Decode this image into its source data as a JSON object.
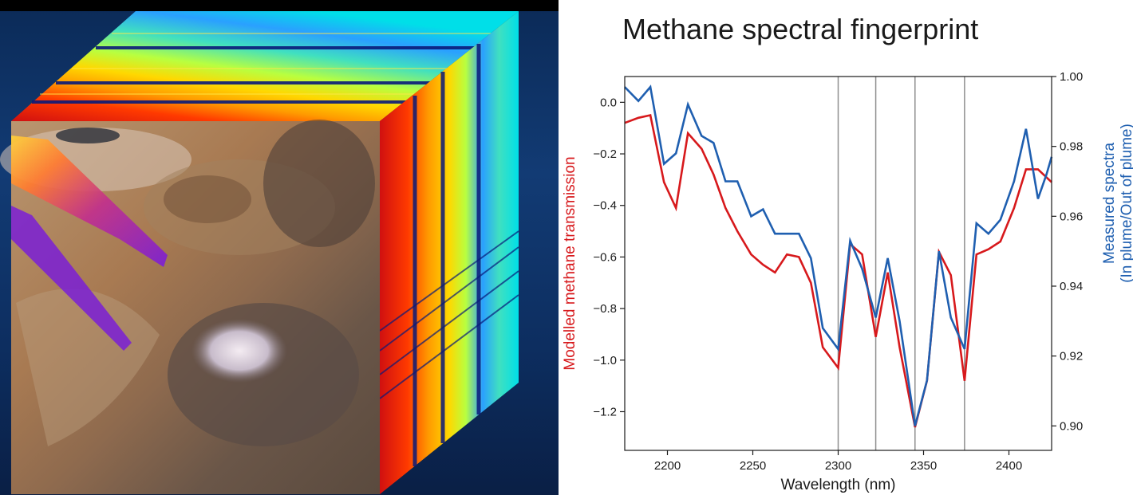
{
  "colors": {
    "series_model": "#d7191c",
    "series_measured": "#1f5fb0",
    "marker_lines": "#8f8f8f",
    "axis": "#1a1a1a",
    "ylabel_left": "#d7191c",
    "ylabel_right": "#1f5fb0"
  },
  "hypercube": {
    "layers": [
      {
        "name": "methane-plume-overlay",
        "color": "#7a1fd6"
      },
      {
        "name": "spectral-top-face",
        "palette": "jet"
      },
      {
        "name": "spectral-side-face",
        "palette": "jet"
      }
    ]
  },
  "chart_data": {
    "type": "line",
    "title": "Methane spectral fingerprint",
    "xlabel": "Wavelength (nm)",
    "ylabel": "Modelled methane transmission",
    "ylabel2_lines": [
      "Measured spectra",
      "(In plume/Out of plume)"
    ],
    "xlim": [
      2175,
      2425
    ],
    "ylim": [
      -1.35,
      0.1
    ],
    "ylim2": [
      0.893,
      1.0
    ],
    "xticks": [
      2200,
      2250,
      2300,
      2350,
      2400
    ],
    "yticks": [
      -1.2,
      -1.0,
      -0.8,
      -0.6,
      -0.4,
      -0.2,
      0.0
    ],
    "yticks2": [
      0.9,
      0.92,
      0.94,
      0.96,
      0.98,
      1.0
    ],
    "vlines": [
      2300,
      2322,
      2345,
      2374
    ],
    "series": [
      {
        "axis": "left",
        "x": [
          2175,
          2183,
          2190,
          2198,
          2205,
          2212,
          2220,
          2227,
          2234,
          2241,
          2249,
          2256,
          2263,
          2270,
          2277,
          2284,
          2291,
          2300,
          2307,
          2314,
          2322,
          2329,
          2336,
          2345,
          2352,
          2359,
          2366,
          2374,
          2381,
          2388,
          2395,
          2403,
          2410,
          2417,
          2425
        ],
        "values": [
          -0.08,
          -0.06,
          -0.05,
          -0.31,
          -0.41,
          -0.12,
          -0.18,
          -0.28,
          -0.41,
          -0.5,
          -0.59,
          -0.63,
          -0.66,
          -0.59,
          -0.6,
          -0.7,
          -0.95,
          -1.03,
          -0.55,
          -0.59,
          -0.91,
          -0.66,
          -0.95,
          -1.26,
          -1.08,
          -0.58,
          -0.67,
          -1.08,
          -0.59,
          -0.57,
          -0.54,
          -0.41,
          -0.26,
          -0.26,
          -0.31
        ]
      },
      {
        "axis": "right",
        "x": [
          2175,
          2183,
          2190,
          2198,
          2205,
          2212,
          2220,
          2227,
          2234,
          2241,
          2249,
          2256,
          2263,
          2270,
          2277,
          2284,
          2291,
          2300,
          2307,
          2314,
          2322,
          2329,
          2336,
          2345,
          2352,
          2359,
          2366,
          2374,
          2381,
          2388,
          2395,
          2403,
          2410,
          2417,
          2422,
          2425
        ],
        "values": [
          0.997,
          0.993,
          0.997,
          0.975,
          0.978,
          0.992,
          0.983,
          0.981,
          0.97,
          0.97,
          0.96,
          0.962,
          0.955,
          0.955,
          0.955,
          0.948,
          0.928,
          0.922,
          0.953,
          0.945,
          0.931,
          0.948,
          0.93,
          0.9,
          0.913,
          0.95,
          0.931,
          0.922,
          0.958,
          0.955,
          0.959,
          0.97,
          0.985,
          0.965,
          0.972,
          0.977
        ]
      }
    ]
  }
}
